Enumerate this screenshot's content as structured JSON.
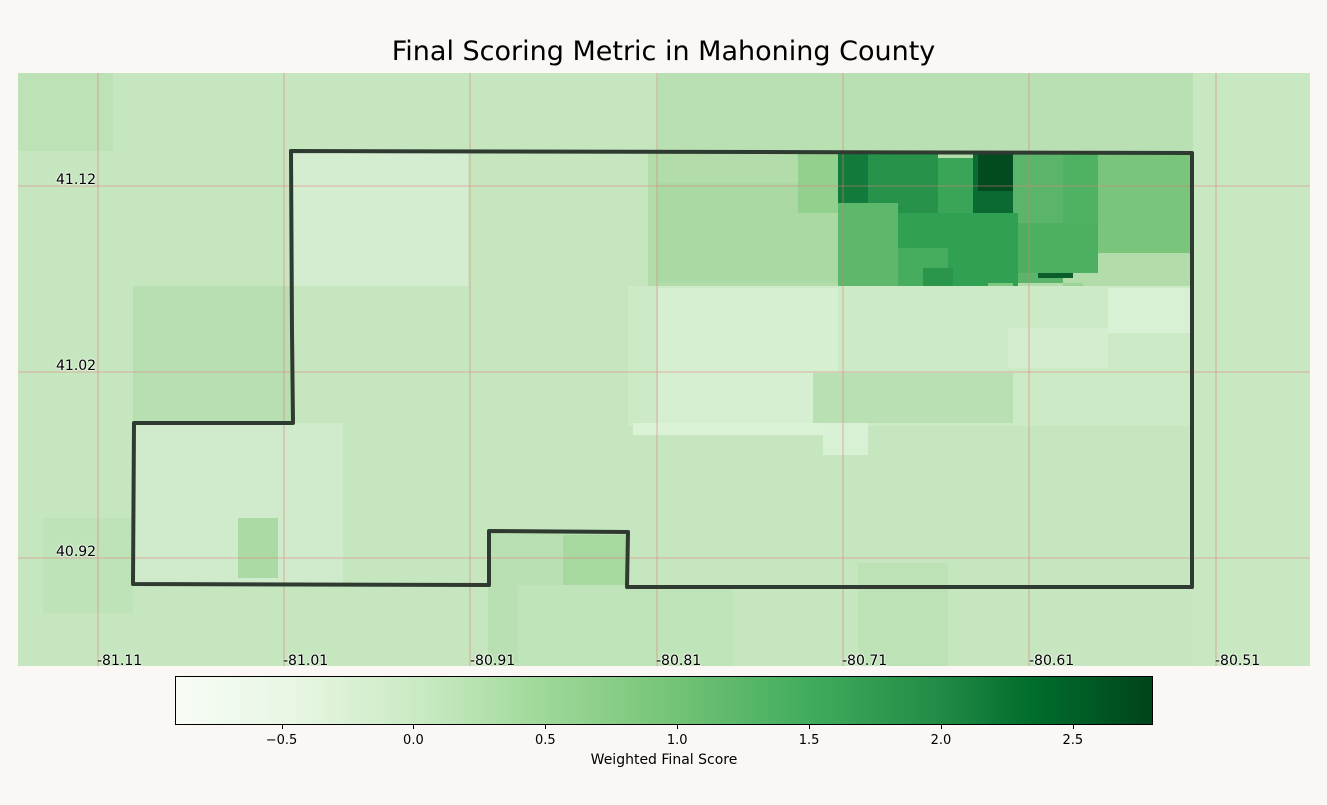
{
  "title": "Final Scoring Metric in Mahoning County",
  "map": {
    "type": "choropleth",
    "region": "Mahoning County",
    "colormap": "Greens",
    "grid_color": "#e07a7a",
    "boundary_color": "#2f3b31",
    "latitude_labels": [
      "41.12",
      "41.02",
      "40.92"
    ],
    "longitude_labels": [
      "-81.11",
      "-81.01",
      "-80.91",
      "-80.81",
      "-80.71",
      "-80.61",
      "-80.51"
    ]
  },
  "colorbar": {
    "label": "Weighted Final Score",
    "range": [
      -0.9,
      2.8
    ],
    "ticks": [
      "−0.5",
      "0.0",
      "0.5",
      "1.0",
      "1.5",
      "2.0",
      "2.5"
    ],
    "tick_values": [
      -0.5,
      0.0,
      0.5,
      1.0,
      1.5,
      2.0,
      2.5
    ]
  }
}
